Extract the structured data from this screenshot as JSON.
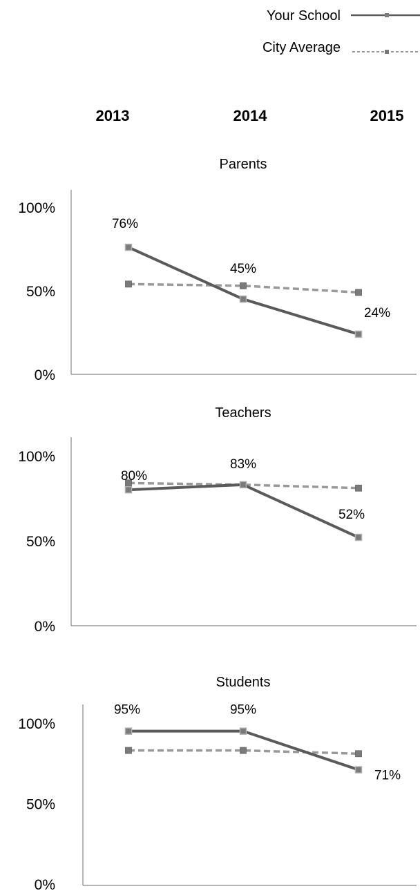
{
  "legend": {
    "your_school": "Your School",
    "city_average": "City Average"
  },
  "years": [
    "2013",
    "2014",
    "2015"
  ],
  "colors": {
    "your_school_line": "#5a5a5a",
    "city_average_line": "#999999",
    "marker_fill": "#7a7a7a",
    "marker_light": "#b0b0b0",
    "axis": "#888888",
    "text": "#000000"
  },
  "chart_data": [
    {
      "type": "line",
      "title": "Parents",
      "categories": [
        "2013",
        "2014",
        "2015"
      ],
      "ylim": [
        0,
        100
      ],
      "yticks": [
        "0%",
        "50%",
        "100%"
      ],
      "series": [
        {
          "name": "Your School",
          "values": [
            76,
            45,
            24
          ],
          "labels": [
            "76%",
            "45%",
            "24%"
          ]
        },
        {
          "name": "City Average",
          "values": [
            54,
            53,
            49
          ]
        }
      ]
    },
    {
      "type": "line",
      "title": "Teachers",
      "categories": [
        "2013",
        "2014",
        "2015"
      ],
      "ylim": [
        0,
        100
      ],
      "yticks": [
        "0%",
        "50%",
        "100%"
      ],
      "series": [
        {
          "name": "Your School",
          "values": [
            80,
            83,
            52
          ],
          "labels": [
            "80%",
            "83%",
            "52%"
          ]
        },
        {
          "name": "City Average",
          "values": [
            84,
            83,
            81
          ]
        }
      ]
    },
    {
      "type": "line",
      "title": "Students",
      "categories": [
        "2013",
        "2014",
        "2015"
      ],
      "ylim": [
        0,
        100
      ],
      "yticks": [
        "0%",
        "50%",
        "100%"
      ],
      "series": [
        {
          "name": "Your School",
          "values": [
            95,
            95,
            71
          ],
          "labels": [
            "95%",
            "95%",
            "71%"
          ]
        },
        {
          "name": "City Average",
          "values": [
            83,
            83,
            81
          ]
        }
      ]
    }
  ]
}
